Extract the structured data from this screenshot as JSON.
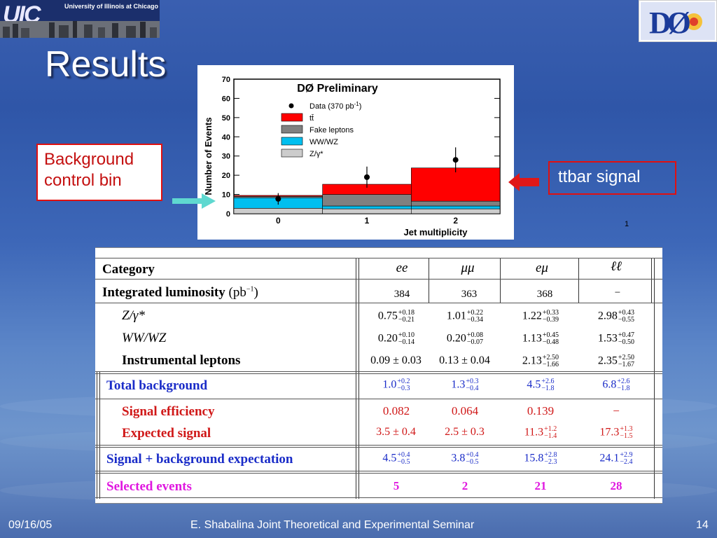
{
  "logos": {
    "uic_letters": "UIC",
    "uic_name": "University of Illinois at Chicago",
    "d0": "DØ"
  },
  "title": "Results",
  "plot": {
    "header": "DØ Preliminary",
    "page_note": "1"
  },
  "callouts": {
    "background": [
      "Background",
      "control bin"
    ],
    "signal": "ttbar signal"
  },
  "chart_data": {
    "type": "bar",
    "title": "DØ Preliminary",
    "xlabel": "Jet multiplicity",
    "ylabel": "Number of Events",
    "categories": [
      "0",
      "1",
      "2"
    ],
    "ylim": [
      0,
      70
    ],
    "yticks": [
      0,
      10,
      20,
      30,
      40,
      50,
      60,
      70
    ],
    "legend_position": "top-right",
    "stacked": true,
    "series": [
      {
        "name": "Z/γ*",
        "color": "#cccccc",
        "values": [
          2.8,
          2.5,
          2.5
        ]
      },
      {
        "name": "WW/WZ",
        "color": "#00bfef",
        "values": [
          5.5,
          1.5,
          1.5
        ]
      },
      {
        "name": "Fake leptons",
        "color": "#808080",
        "values": [
          0.7,
          6.0,
          2.5
        ]
      },
      {
        "name": "tt̄",
        "color": "#ff0000",
        "values": [
          0.5,
          5.3,
          17.3
        ]
      }
    ],
    "data": {
      "name": "Data (370 pb",
      "name_sup": "-1",
      "name_end": ")",
      "values": [
        7.7,
        19,
        28
      ],
      "errors": [
        3,
        5.5,
        6.5
      ]
    },
    "xticks": [
      "0",
      "1",
      "2"
    ]
  },
  "table": {
    "header": {
      "category": "Category",
      "cols": [
        "ee",
        "μμ",
        "eμ",
        "ℓℓ"
      ]
    },
    "lumi": {
      "label": "Integrated luminosity ",
      "unit": "(pb",
      "unit_sup": "−1",
      "unit_end": ")",
      "values": [
        "384",
        "363",
        "368",
        "−"
      ]
    },
    "rows": [
      {
        "label": "Z/γ*",
        "italic": true,
        "values": [
          [
            "0.75",
            "+0.18",
            "−0.21"
          ],
          [
            "1.01",
            "+0.22",
            "−0.34"
          ],
          [
            "1.22",
            "+0.33",
            "−0.39"
          ],
          [
            "2.98",
            "+0.43",
            "−0.55"
          ]
        ]
      },
      {
        "label": "WW/WZ",
        "italic": true,
        "values": [
          [
            "0.20",
            "+0.10",
            "−0.14"
          ],
          [
            "0.20",
            "+0.08",
            "−0.07"
          ],
          [
            "1.13",
            "+0.45",
            "−0.48"
          ],
          [
            "1.53",
            "+0.47",
            "−0.50"
          ]
        ]
      },
      {
        "label": "Instrumental leptons",
        "values": [
          [
            "0.09 ± 0.03",
            "",
            ""
          ],
          [
            "0.13 ± 0.04",
            "",
            ""
          ],
          [
            "2.13",
            "+2.50",
            "−1.66"
          ],
          [
            "2.35",
            "+2.50",
            "−1.67"
          ]
        ]
      }
    ],
    "total_bg": {
      "label": "Total background",
      "values": [
        [
          "1.0",
          "+0.2",
          "−0.3"
        ],
        [
          "1.3",
          "+0.3",
          "−0.4"
        ],
        [
          "4.5",
          "+2.6",
          "−1.8"
        ],
        [
          "6.8",
          "+2.6",
          "−1.8"
        ]
      ]
    },
    "sig_eff": {
      "label": "Signal efficiency",
      "values": [
        "0.082",
        "0.064",
        "0.139",
        "−"
      ]
    },
    "exp_sig": {
      "label": "Expected signal",
      "values": [
        [
          "3.5 ± 0.4",
          "",
          ""
        ],
        [
          "2.5 ± 0.3",
          "",
          ""
        ],
        [
          "11.3",
          "+1.2",
          "−1.4"
        ],
        [
          "17.3",
          "+1.3",
          "−1.5"
        ]
      ]
    },
    "sig_bg": {
      "label": "Signal + background expectation",
      "values": [
        [
          "4.5",
          "+0.4",
          "−0.5"
        ],
        [
          "3.8",
          "+0.4",
          "−0.5"
        ],
        [
          "15.8",
          "+2.8",
          "−2.3"
        ],
        [
          "24.1",
          "+2.9",
          "−2.4"
        ]
      ]
    },
    "selected": {
      "label": "Selected events",
      "values": [
        "5",
        "2",
        "21",
        "28"
      ]
    }
  },
  "footer": {
    "date": "09/16/05",
    "center": "E. Shabalina Joint Theoretical and Experimental Seminar",
    "page": "14"
  }
}
